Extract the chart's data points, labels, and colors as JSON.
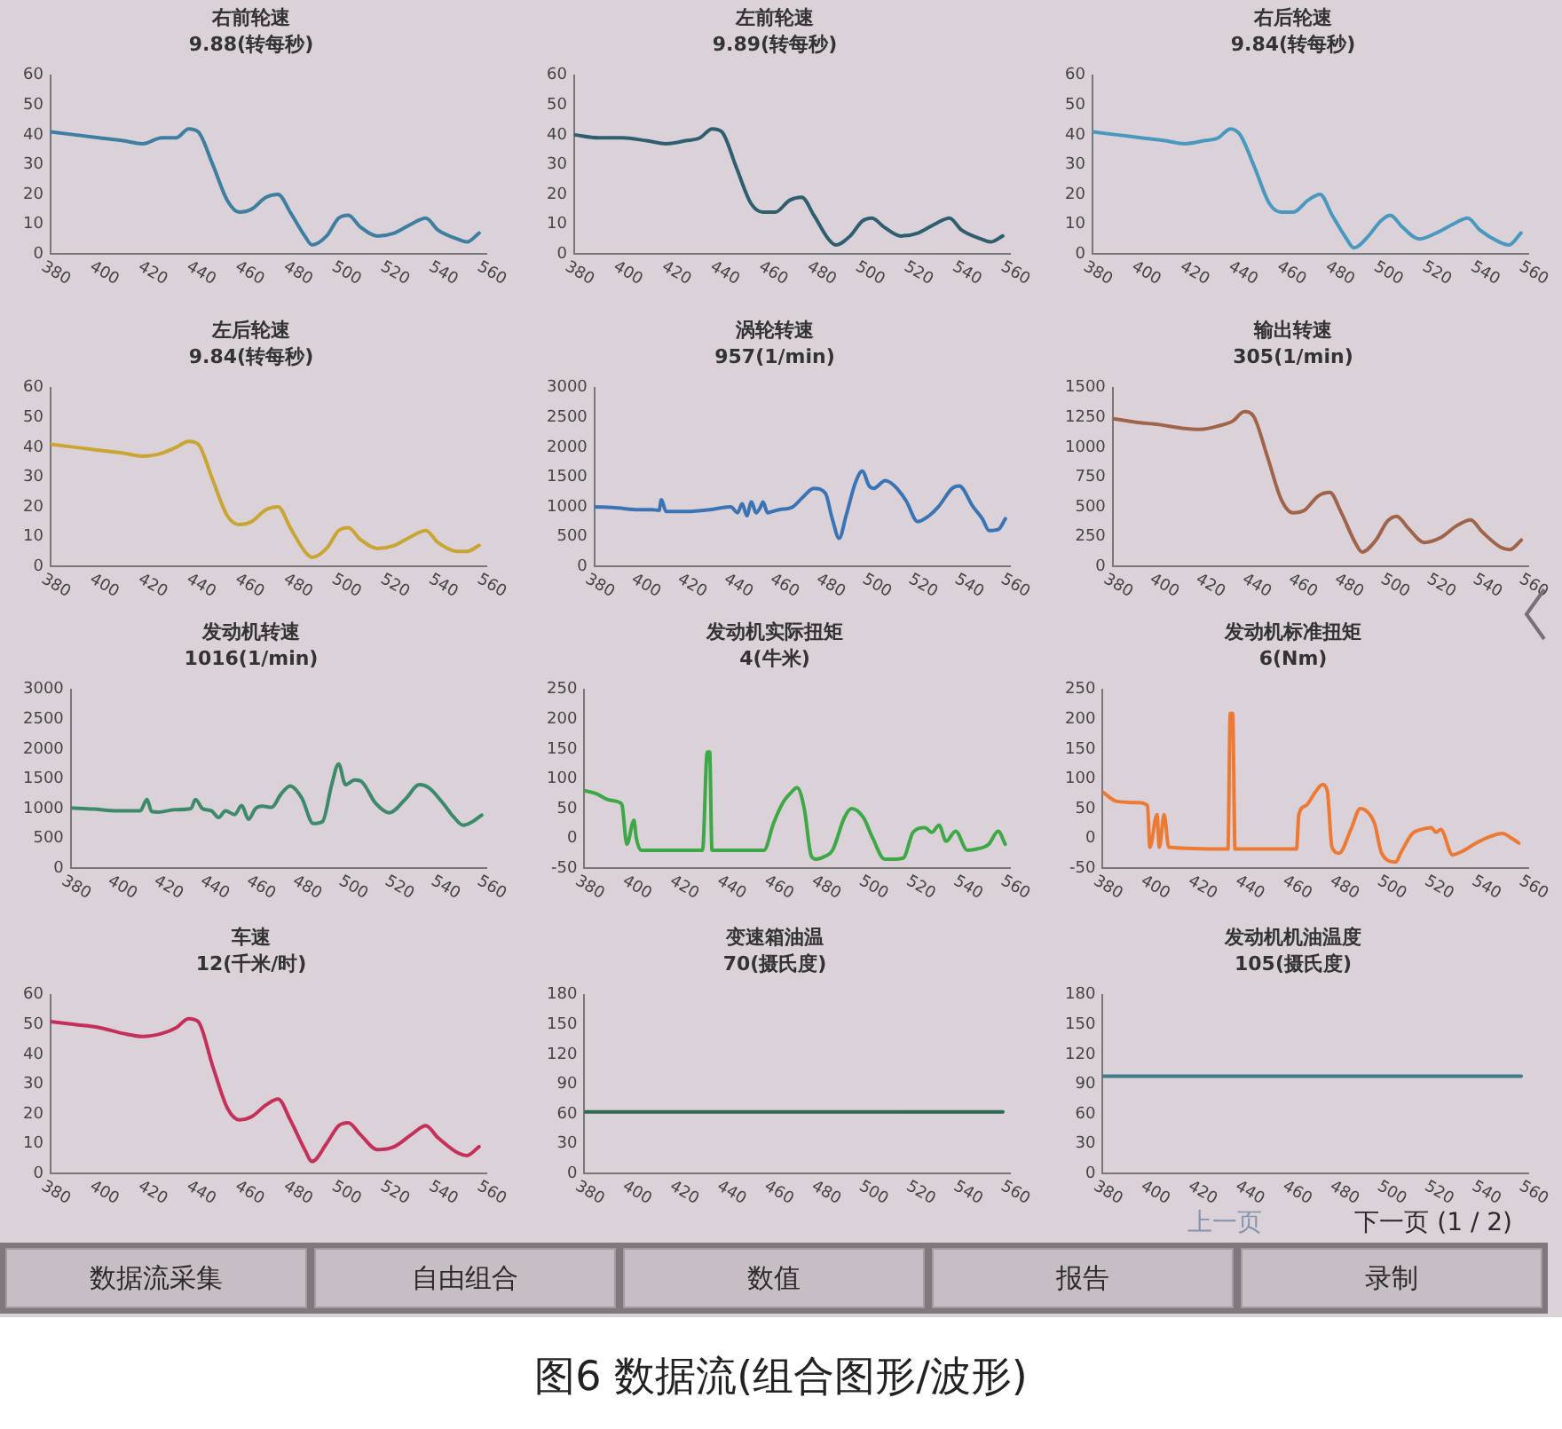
{
  "chart_data": [
    {
      "type": "line",
      "title": "右前轮速",
      "subtitle": "9.88(转每秒)",
      "x": [
        380,
        390,
        400,
        410,
        418,
        426,
        432,
        437,
        441,
        447,
        453,
        458,
        463,
        469,
        474,
        479,
        485,
        488,
        494,
        499,
        503,
        508,
        515,
        522,
        529,
        535,
        540,
        548,
        552,
        557
      ],
      "values": [
        41,
        40,
        39,
        38,
        37,
        39,
        39,
        42,
        41,
        30,
        18,
        14,
        15,
        19,
        20,
        14,
        6,
        3,
        6,
        12,
        13,
        9,
        6,
        7,
        10,
        12,
        8,
        5,
        4,
        7
      ],
      "color": "#3e7ea0",
      "xlim": [
        380,
        560
      ],
      "xticks": [
        380,
        400,
        420,
        440,
        460,
        480,
        500,
        520,
        540,
        560
      ],
      "ylim": [
        0,
        60
      ],
      "yticks": [
        0,
        10,
        20,
        30,
        40,
        50,
        60
      ]
    },
    {
      "type": "line",
      "title": "左前轮速",
      "subtitle": "9.89(转每秒)",
      "x": [
        380,
        390,
        400,
        410,
        418,
        426,
        432,
        437,
        441,
        447,
        453,
        458,
        463,
        469,
        474,
        479,
        485,
        488,
        494,
        499,
        503,
        508,
        515,
        522,
        529,
        535,
        540,
        548,
        552,
        557
      ],
      "values": [
        40,
        39,
        39,
        38,
        37,
        38,
        39,
        42,
        41,
        29,
        17,
        14,
        14,
        18,
        19,
        13,
        5,
        3,
        6,
        11,
        12,
        9,
        6,
        7,
        10,
        12,
        8,
        5,
        4,
        6
      ],
      "color": "#2f5f6e",
      "xlim": [
        380,
        560
      ],
      "xticks": [
        380,
        400,
        420,
        440,
        460,
        480,
        500,
        520,
        540,
        560
      ],
      "ylim": [
        0,
        60
      ],
      "yticks": [
        0,
        10,
        20,
        30,
        40,
        50,
        60
      ]
    },
    {
      "type": "line",
      "title": "右后轮速",
      "subtitle": "9.84(转每秒)",
      "x": [
        380,
        390,
        400,
        410,
        418,
        426,
        432,
        437,
        441,
        447,
        453,
        458,
        463,
        469,
        474,
        479,
        485,
        488,
        494,
        499,
        503,
        508,
        515,
        522,
        529,
        535,
        540,
        548,
        552,
        557
      ],
      "values": [
        41,
        40,
        39,
        38,
        37,
        38,
        39,
        42,
        40,
        29,
        17,
        14,
        14,
        18,
        20,
        13,
        5,
        2,
        6,
        11,
        13,
        9,
        5,
        7,
        10,
        12,
        8,
        4,
        3,
        7
      ],
      "color": "#4898c0",
      "xlim": [
        380,
        560
      ],
      "xticks": [
        380,
        400,
        420,
        440,
        460,
        480,
        500,
        520,
        540,
        560
      ],
      "ylim": [
        0,
        60
      ],
      "yticks": [
        0,
        10,
        20,
        30,
        40,
        50,
        60
      ]
    },
    {
      "type": "line",
      "title": "左后轮速",
      "subtitle": "9.84(转每秒)",
      "x": [
        380,
        390,
        400,
        410,
        418,
        426,
        432,
        437,
        441,
        447,
        453,
        458,
        463,
        469,
        474,
        479,
        485,
        488,
        494,
        499,
        503,
        508,
        515,
        522,
        529,
        535,
        540,
        548,
        552,
        557
      ],
      "values": [
        41,
        40,
        39,
        38,
        37,
        38,
        40,
        42,
        41,
        29,
        17,
        14,
        15,
        19,
        20,
        13,
        5,
        3,
        6,
        12,
        13,
        9,
        6,
        7,
        10,
        12,
        8,
        5,
        5,
        7
      ],
      "color": "#c9a634",
      "xlim": [
        380,
        560
      ],
      "xticks": [
        380,
        400,
        420,
        440,
        460,
        480,
        500,
        520,
        540,
        560
      ],
      "ylim": [
        0,
        60
      ],
      "yticks": [
        0,
        10,
        20,
        30,
        40,
        50,
        60
      ]
    },
    {
      "type": "line",
      "title": "涡轮转速",
      "subtitle": "957(1/min)",
      "x": [
        380,
        390,
        399,
        405,
        408,
        409,
        411,
        420,
        430,
        439,
        442,
        444,
        446,
        448,
        450,
        452,
        453,
        455,
        457,
        460,
        466,
        470,
        475,
        480,
        483,
        486,
        489,
        493,
        496,
        499,
        501,
        506,
        510,
        515,
        520,
        525,
        529,
        535,
        538,
        544,
        548,
        551,
        555,
        558
      ],
      "values": [
        1000,
        980,
        950,
        950,
        940,
        1120,
        920,
        920,
        950,
        1000,
        900,
        1050,
        850,
        1080,
        900,
        1000,
        1080,
        900,
        920,
        950,
        1000,
        1150,
        1310,
        1230,
        800,
        470,
        850,
        1400,
        1600,
        1350,
        1310,
        1440,
        1350,
        1100,
        750,
        850,
        1000,
        1310,
        1350,
        1000,
        800,
        600,
        620,
        800
      ],
      "color": "#3a74b4",
      "xlim": [
        380,
        560
      ],
      "xticks": [
        380,
        400,
        420,
        440,
        460,
        480,
        500,
        520,
        540,
        560
      ],
      "ylim": [
        0,
        3000
      ],
      "yticks": [
        0,
        500,
        1000,
        1500,
        2000,
        2500,
        3000
      ]
    },
    {
      "type": "line",
      "title": "输出转速",
      "subtitle": "305(1/min)",
      "x": [
        380,
        390,
        400,
        410,
        418,
        426,
        432,
        437,
        441,
        447,
        453,
        458,
        463,
        469,
        474,
        479,
        485,
        488,
        494,
        499,
        503,
        508,
        515,
        522,
        529,
        535,
        540,
        548,
        552,
        557
      ],
      "values": [
        1240,
        1210,
        1190,
        1160,
        1150,
        1180,
        1220,
        1300,
        1260,
        920,
        560,
        450,
        470,
        590,
        620,
        450,
        200,
        120,
        220,
        380,
        420,
        320,
        200,
        240,
        340,
        390,
        290,
        160,
        140,
        220
      ],
      "color": "#a0644a",
      "xlim": [
        380,
        560
      ],
      "xticks": [
        380,
        400,
        420,
        440,
        460,
        480,
        500,
        520,
        540,
        560
      ],
      "ylim": [
        0,
        1500
      ],
      "yticks": [
        0,
        250,
        500,
        750,
        1000,
        1250,
        1500
      ]
    },
    {
      "type": "line",
      "title": "发动机转速",
      "subtitle": "1016(1/min)",
      "x": [
        380,
        390,
        400,
        410,
        413,
        415,
        418,
        425,
        432,
        434,
        437,
        441,
        444,
        447,
        451,
        454,
        457,
        460,
        463,
        467,
        471,
        475,
        480,
        485,
        489,
        493,
        496,
        499,
        503,
        506,
        512,
        518,
        525,
        531,
        535,
        541,
        546,
        550,
        554,
        558
      ],
      "values": [
        1010,
        990,
        960,
        960,
        1150,
        950,
        940,
        980,
        1000,
        1150,
        1000,
        960,
        850,
        960,
        900,
        1050,
        820,
        1000,
        1040,
        1020,
        1240,
        1380,
        1180,
        750,
        780,
        1400,
        1750,
        1400,
        1480,
        1450,
        1090,
        930,
        1160,
        1400,
        1350,
        1100,
        850,
        720,
        780,
        890
      ],
      "color": "#3c8a6a",
      "xlim": [
        380,
        560
      ],
      "xticks": [
        380,
        400,
        420,
        440,
        460,
        480,
        500,
        520,
        540,
        560
      ],
      "ylim": [
        0,
        3000
      ],
      "yticks": [
        0,
        500,
        1000,
        1500,
        2000,
        2500,
        3000
      ]
    },
    {
      "type": "line",
      "title": "发动机实际扭矩",
      "subtitle": "4(牛米)",
      "x": [
        380,
        385,
        390,
        395,
        396,
        398,
        401,
        402,
        404,
        406,
        430,
        432,
        433,
        434,
        436,
        456,
        460,
        464,
        467,
        470,
        473,
        476,
        478,
        482,
        485,
        490,
        493,
        498,
        502,
        507,
        512,
        515,
        519,
        524,
        527,
        530,
        533,
        537,
        542,
        546,
        551,
        555,
        558
      ],
      "values": [
        80,
        75,
        65,
        60,
        55,
        -10,
        30,
        0,
        -20,
        -20,
        -20,
        145,
        145,
        -20,
        -20,
        -20,
        25,
        60,
        75,
        85,
        50,
        -30,
        -35,
        -30,
        -20,
        35,
        50,
        35,
        0,
        -35,
        -35,
        -33,
        10,
        18,
        10,
        22,
        -5,
        12,
        -20,
        -18,
        -10,
        12,
        -10
      ],
      "color": "#3ea846",
      "xlim": [
        380,
        560
      ],
      "xticks": [
        380,
        400,
        420,
        440,
        460,
        480,
        500,
        520,
        540,
        560
      ],
      "ylim": [
        -50,
        250
      ],
      "yticks": [
        -50,
        0,
        50,
        100,
        150,
        200,
        250
      ]
    },
    {
      "type": "line",
      "title": "发动机标准扭矩",
      "subtitle": "6(Nm)",
      "x": [
        380,
        386,
        395,
        399,
        400,
        403,
        404,
        406,
        408,
        433,
        434,
        435,
        436,
        462,
        463,
        466,
        470,
        473,
        475,
        477,
        480,
        485,
        489,
        493,
        495,
        498,
        504,
        506,
        511,
        515,
        519,
        521,
        523,
        528,
        532,
        538,
        544,
        549,
        553,
        556
      ],
      "values": [
        78,
        62,
        60,
        55,
        -15,
        40,
        -15,
        40,
        -15,
        -18,
        210,
        210,
        -18,
        -18,
        40,
        55,
        78,
        90,
        80,
        -15,
        -25,
        15,
        50,
        40,
        25,
        -25,
        -40,
        -25,
        8,
        15,
        18,
        10,
        15,
        -28,
        -22,
        -8,
        3,
        8,
        0,
        -8
      ],
      "color": "#ec7a34",
      "xlim": [
        380,
        560
      ],
      "xticks": [
        380,
        400,
        420,
        440,
        460,
        480,
        500,
        520,
        540,
        560
      ],
      "ylim": [
        -50,
        250
      ],
      "yticks": [
        -50,
        0,
        50,
        100,
        150,
        200,
        250
      ]
    },
    {
      "type": "line",
      "title": "车速",
      "subtitle": "12(千米/时)",
      "x": [
        380,
        390,
        400,
        410,
        418,
        426,
        432,
        437,
        441,
        447,
        453,
        458,
        463,
        469,
        474,
        479,
        485,
        488,
        494,
        499,
        503,
        508,
        515,
        522,
        529,
        535,
        540,
        548,
        552,
        557
      ],
      "values": [
        51,
        50,
        49,
        47,
        46,
        47,
        49,
        52,
        51,
        36,
        22,
        18,
        19,
        23,
        25,
        18,
        8,
        4,
        10,
        16,
        17,
        13,
        8,
        9,
        13,
        16,
        12,
        7,
        6,
        9
      ],
      "color": "#c4305a",
      "xlim": [
        380,
        560
      ],
      "xticks": [
        380,
        400,
        420,
        440,
        460,
        480,
        500,
        520,
        540,
        560
      ],
      "ylim": [
        0,
        60
      ],
      "yticks": [
        0,
        10,
        20,
        30,
        40,
        50,
        60
      ]
    },
    {
      "type": "line",
      "title": "变速箱油温",
      "subtitle": "70(摄氏度)",
      "x": [
        380,
        557
      ],
      "values": [
        62,
        62
      ],
      "color": "#2e6a4c",
      "xlim": [
        380,
        560
      ],
      "xticks": [
        380,
        400,
        420,
        440,
        460,
        480,
        500,
        520,
        540,
        560
      ],
      "ylim": [
        0,
        180
      ],
      "yticks": [
        0,
        30,
        60,
        90,
        120,
        150,
        180
      ]
    },
    {
      "type": "line",
      "title": "发动机机油温度",
      "subtitle": "105(摄氏度)",
      "x": [
        380,
        557
      ],
      "values": [
        98,
        98
      ],
      "color": "#3c7c88",
      "xlim": [
        380,
        560
      ],
      "xticks": [
        380,
        400,
        420,
        440,
        460,
        480,
        500,
        520,
        540,
        560
      ],
      "ylim": [
        0,
        180
      ],
      "yticks": [
        0,
        30,
        60,
        90,
        120,
        150,
        180
      ]
    },
    {
      "type": "other",
      "annotations": [
        "上一页",
        "下一页 (1 / 2)"
      ]
    },
    {
      "type": "other",
      "annotations": [
        "数据流采集",
        "自由组合",
        "数值",
        "报告",
        "录制"
      ]
    },
    {
      "type": "other",
      "title": "图6 数据流(组合图形/波形)"
    }
  ]
}
